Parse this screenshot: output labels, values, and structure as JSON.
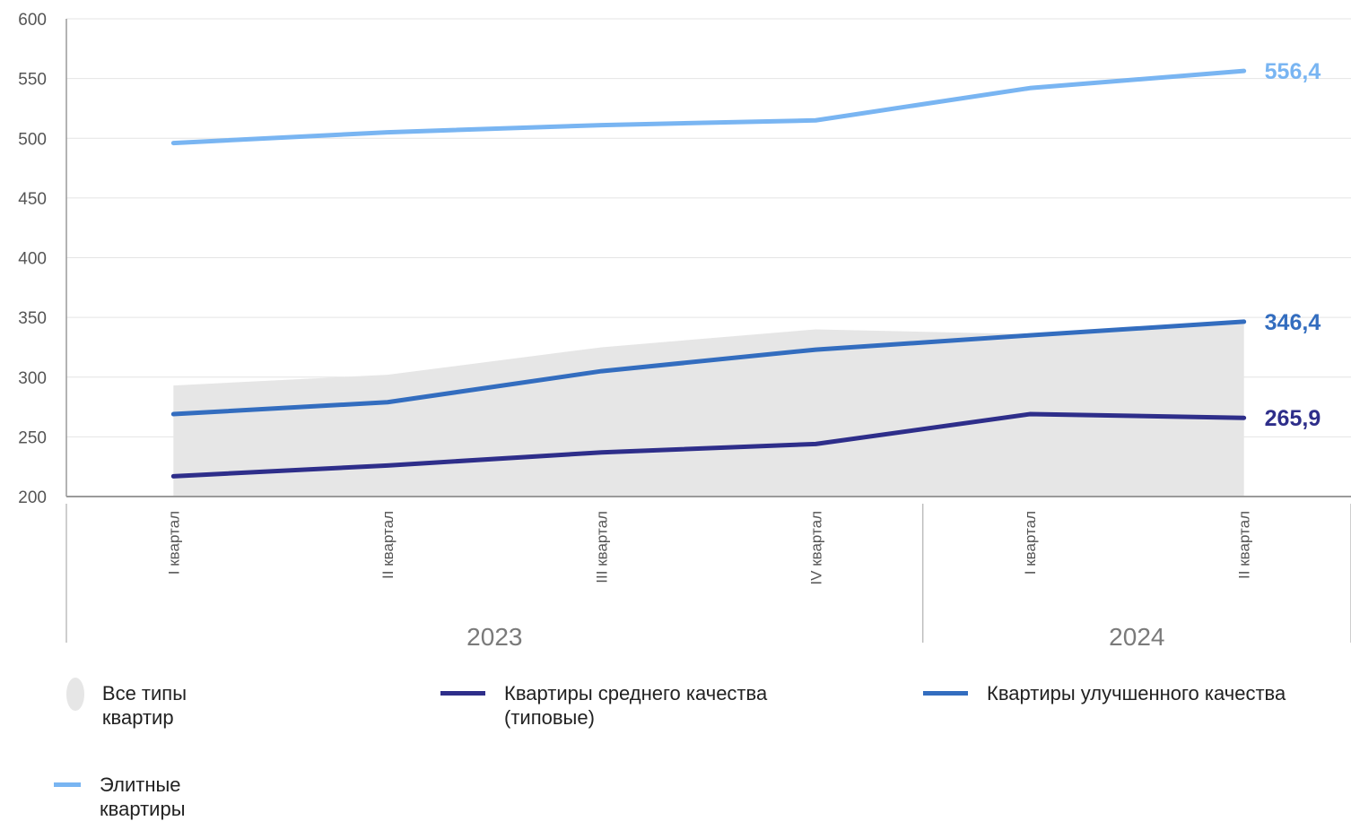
{
  "chart_data": {
    "type": "line",
    "categories": [
      "I квартал",
      "II квартал",
      "III квартал",
      "IV квартал",
      "I квартал",
      "II квартал"
    ],
    "year_groups": [
      {
        "label": "2023",
        "count": 4
      },
      {
        "label": "2024",
        "count": 2
      }
    ],
    "ylim": [
      200,
      600
    ],
    "yticks": [
      200,
      250,
      300,
      350,
      400,
      450,
      500,
      550,
      600
    ],
    "grid": true,
    "legend_position": "bottom",
    "series": [
      {
        "name": "Все типы квартир",
        "kind": "area",
        "color": "#e6e6e6",
        "values": [
          293,
          302,
          325,
          340,
          336,
          346
        ]
      },
      {
        "name": "Квартиры среднего качества (типовые)",
        "kind": "line",
        "color": "#2e2e8a",
        "values": [
          217,
          226,
          237,
          244,
          269,
          265.9
        ],
        "end_label": "265,9"
      },
      {
        "name": "Квартиры улучшенного качества",
        "kind": "line",
        "color": "#336dbf",
        "values": [
          269,
          279,
          305,
          323,
          335,
          346.4
        ],
        "end_label": "346,4"
      },
      {
        "name": "Элитные квартиры",
        "kind": "line",
        "color": "#79b5f2",
        "values": [
          496,
          505,
          511,
          515,
          542,
          556.4
        ],
        "end_label": "556,4"
      }
    ]
  },
  "legend": [
    {
      "label": "Все типы квартир",
      "shape": "circle",
      "color": "#e6e6e6"
    },
    {
      "label": "Квартиры среднего качества (типовые)",
      "shape": "line",
      "color": "#2e2e8a"
    },
    {
      "label": "Квартиры улучшенного качества",
      "shape": "line",
      "color": "#336dbf"
    },
    {
      "label": "Элитные квартиры",
      "shape": "line",
      "color": "#79b5f2"
    }
  ]
}
